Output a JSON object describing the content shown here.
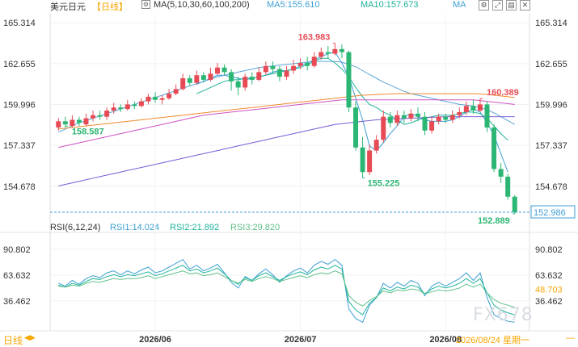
{
  "header": {
    "symbol": "美元日元",
    "period": "【日线】",
    "ma_title": "MA(5,10,30,60,100,200)",
    "ma5": "MA5:155.610",
    "ma10": "MA10:157.673",
    "ma_more": "MA"
  },
  "rsi_header": {
    "title": "RSI(6,12,24)",
    "rsi1": "RSI1:14.024",
    "rsi2": "RSI2:21.892",
    "rsi3": "RSI3:29.820"
  },
  "colors": {
    "up": "#e64b55",
    "down": "#2bb673",
    "ma5": "#3c9fd3",
    "ma10": "#1db39a",
    "ma30": "#5aa6d6",
    "ma60": "#f28a2e",
    "ma100": "#cc52c4",
    "ma200": "#7a5bd6",
    "rsi1": "#3c9fd3",
    "rsi2": "#1db39a",
    "rsi3": "#5fc08a",
    "last_price": "#3c9fd3",
    "axis_text": "#333333"
  },
  "icons": [
    "settings-icon",
    "expand-icon",
    "layout-icon",
    "close-icon"
  ],
  "footer": {
    "label": "日线",
    "arrows": "◀▶",
    "cursor_date": "2026/08/24 星期一",
    "nav": "—"
  },
  "watermark": "FX678",
  "chart_data": [
    {
      "type": "candlestick",
      "title": "美元日元【日线】",
      "ylim": [
        152.2,
        165.9
      ],
      "y_ticks": [
        "165.314",
        "162.655",
        "159.996",
        "157.337",
        "154.678"
      ],
      "x_ticks": [
        "2026/06",
        "2026/07",
        "2026/08"
      ],
      "annotations": {
        "high": "163.983",
        "high_right": "160.389",
        "low_mid": "155.225",
        "low_left": "158.587",
        "low_last": "152.889",
        "last_price": "152.986"
      },
      "candles": [
        [
          158.5,
          158.9,
          159.1,
          158.3
        ],
        [
          158.9,
          158.7,
          159.2,
          158.5
        ],
        [
          158.6,
          159.0,
          159.3,
          158.5
        ],
        [
          159.0,
          158.8,
          159.2,
          158.6
        ],
        [
          158.7,
          159.1,
          159.4,
          158.6
        ],
        [
          159.1,
          159.3,
          159.6,
          158.9
        ],
        [
          159.3,
          159.2,
          159.6,
          159.0
        ],
        [
          159.2,
          159.6,
          159.8,
          159.0
        ],
        [
          159.6,
          159.8,
          160.1,
          159.4
        ],
        [
          159.8,
          159.7,
          160.0,
          159.5
        ],
        [
          159.7,
          160.0,
          160.3,
          159.6
        ],
        [
          160.0,
          159.9,
          160.2,
          159.7
        ],
        [
          159.9,
          160.2,
          160.4,
          159.8
        ],
        [
          160.2,
          160.5,
          160.7,
          160.0
        ],
        [
          160.5,
          160.3,
          160.8,
          160.1
        ],
        [
          160.3,
          160.4,
          160.6,
          160.0
        ],
        [
          160.4,
          160.7,
          161.0,
          160.3
        ],
        [
          160.7,
          161.0,
          161.3,
          160.6
        ],
        [
          161.0,
          161.7,
          162.0,
          160.9
        ],
        [
          161.7,
          161.4,
          161.9,
          161.2
        ],
        [
          161.4,
          161.9,
          162.2,
          161.3
        ],
        [
          161.9,
          161.6,
          162.1,
          161.4
        ],
        [
          161.6,
          162.0,
          162.4,
          161.5
        ],
        [
          162.0,
          162.4,
          162.7,
          161.9
        ],
        [
          162.4,
          162.1,
          162.6,
          161.9
        ],
        [
          162.1,
          161.5,
          162.3,
          160.9
        ],
        [
          161.5,
          161.1,
          161.8,
          160.6
        ],
        [
          161.1,
          161.8,
          162.0,
          160.9
        ],
        [
          161.8,
          161.6,
          162.1,
          161.3
        ],
        [
          161.6,
          162.1,
          162.4,
          161.5
        ],
        [
          162.1,
          162.5,
          162.8,
          161.9
        ],
        [
          162.5,
          162.3,
          162.8,
          162.0
        ],
        [
          162.3,
          161.8,
          162.5,
          161.5
        ],
        [
          161.8,
          162.2,
          162.5,
          161.6
        ],
        [
          162.2,
          162.5,
          162.9,
          162.0
        ],
        [
          162.5,
          162.7,
          163.0,
          162.3
        ],
        [
          162.7,
          162.5,
          163.1,
          162.2
        ],
        [
          162.5,
          163.1,
          163.4,
          162.4
        ],
        [
          163.1,
          163.4,
          163.7,
          162.9
        ],
        [
          163.4,
          163.3,
          163.8,
          163.0
        ],
        [
          163.3,
          163.6,
          163.98,
          163.2
        ],
        [
          163.6,
          163.4,
          163.9,
          163.0
        ],
        [
          163.4,
          159.8,
          163.5,
          159.5
        ],
        [
          159.8,
          157.2,
          160.2,
          157.0
        ],
        [
          157.2,
          155.6,
          157.9,
          155.22
        ],
        [
          155.6,
          157.0,
          157.4,
          155.4
        ],
        [
          157.0,
          157.7,
          158.0,
          156.8
        ],
        [
          157.7,
          159.2,
          159.6,
          157.5
        ],
        [
          159.2,
          158.8,
          159.5,
          158.5
        ],
        [
          158.8,
          159.3,
          159.6,
          158.6
        ],
        [
          159.3,
          159.1,
          159.6,
          158.8
        ],
        [
          159.1,
          159.4,
          159.7,
          158.9
        ],
        [
          159.4,
          159.2,
          159.8,
          158.9
        ],
        [
          159.2,
          158.3,
          159.5,
          158.0
        ],
        [
          158.3,
          158.9,
          159.2,
          158.1
        ],
        [
          158.9,
          159.2,
          159.4,
          158.7
        ],
        [
          159.2,
          159.0,
          159.4,
          158.8
        ],
        [
          159.0,
          159.3,
          159.6,
          158.8
        ],
        [
          159.3,
          159.5,
          159.8,
          159.1
        ],
        [
          159.5,
          159.9,
          160.2,
          159.3
        ],
        [
          159.9,
          159.6,
          160.3,
          159.4
        ],
        [
          159.6,
          160.0,
          160.39,
          159.5
        ],
        [
          160.0,
          158.5,
          160.2,
          158.2
        ],
        [
          158.5,
          155.8,
          158.7,
          155.6
        ],
        [
          155.8,
          155.3,
          156.2,
          154.9
        ],
        [
          155.3,
          154.0,
          155.5,
          153.8
        ],
        [
          154.0,
          152.99,
          154.1,
          152.889
        ]
      ],
      "ma_series": [
        {
          "name": "MA5",
          "start": 20,
          "values": [
            161.3,
            161.5,
            161.7,
            161.9,
            161.9,
            161.8,
            161.7,
            161.6,
            161.7,
            161.8,
            161.9,
            162.1,
            162.2,
            162.2,
            162.3,
            162.5,
            162.7,
            162.9,
            163.1,
            163.3,
            163.4,
            162.7,
            161.8,
            160.4,
            159.0,
            157.3,
            157.0,
            157.5,
            158.1,
            158.6,
            159.2,
            159.4,
            159.2,
            159.0,
            158.9,
            158.9,
            158.9,
            159.0,
            159.2,
            159.5,
            159.7,
            159.5,
            158.8,
            158.0,
            156.8,
            155.61
          ]
        },
        {
          "name": "MA10",
          "start": 20,
          "values": [
            160.7,
            160.9,
            161.1,
            161.3,
            161.5,
            161.6,
            161.6,
            161.7,
            161.7,
            161.8,
            161.9,
            162.0,
            162.1,
            162.2,
            162.3,
            162.4,
            162.6,
            162.8,
            163.0,
            163.0,
            162.7,
            162.3,
            161.8,
            161.1,
            160.5,
            160.0,
            159.8,
            159.5,
            159.3,
            159.0,
            158.7,
            158.8,
            159.0,
            159.1,
            159.2,
            159.3,
            159.3,
            159.3,
            159.4,
            159.5,
            159.5,
            159.4,
            159.1,
            158.6,
            158.1,
            157.67
          ]
        },
        {
          "name": "MA30",
          "start": 0,
          "values": [
            158.2,
            158.4,
            158.6,
            158.8,
            158.95,
            159.1,
            159.25,
            159.4,
            159.55,
            159.7,
            159.85,
            160.0,
            160.15,
            160.3,
            160.45,
            160.6,
            160.75,
            160.9,
            161.05,
            161.2,
            161.35,
            161.5,
            161.65,
            161.8,
            161.9,
            162.0,
            162.1,
            162.2,
            162.3,
            162.4,
            162.45,
            162.5,
            162.55,
            162.6,
            162.65,
            162.7,
            162.75,
            162.8,
            162.8,
            162.8,
            162.8,
            162.75,
            162.6,
            162.45,
            162.2,
            161.95,
            161.7,
            161.45,
            161.25,
            161.05,
            160.85,
            160.7,
            160.6,
            160.5,
            160.4,
            160.3,
            160.2,
            160.1,
            160.0,
            159.95,
            159.9,
            159.8,
            159.65,
            159.45,
            159.2,
            158.95,
            158.7
          ]
        },
        {
          "name": "MA60",
          "start": 0,
          "values": [
            158.4,
            158.45,
            158.5,
            158.55,
            158.6,
            158.65,
            158.7,
            158.75,
            158.8,
            158.85,
            158.9,
            158.95,
            159.0,
            159.05,
            159.1,
            159.15,
            159.2,
            159.25,
            159.3,
            159.35,
            159.4,
            159.45,
            159.5,
            159.55,
            159.6,
            159.65,
            159.7,
            159.75,
            159.8,
            159.85,
            159.9,
            159.95,
            160.0,
            160.05,
            160.1,
            160.15,
            160.2,
            160.25,
            160.3,
            160.35,
            160.4,
            160.45,
            160.5,
            160.55,
            160.6,
            160.62,
            160.64,
            160.66,
            160.68,
            160.7,
            160.7,
            160.7,
            160.7,
            160.7,
            160.7,
            160.7,
            160.7,
            160.7,
            160.7,
            160.7,
            160.7,
            160.68,
            160.64,
            160.6,
            160.55,
            160.5,
            160.45
          ]
        },
        {
          "name": "MA100",
          "start": 0,
          "values": [
            157.2,
            157.3,
            157.4,
            157.5,
            157.6,
            157.7,
            157.8,
            157.9,
            158.0,
            158.1,
            158.2,
            158.3,
            158.4,
            158.5,
            158.6,
            158.7,
            158.8,
            158.9,
            159.0,
            159.1,
            159.2,
            159.3,
            159.35,
            159.4,
            159.45,
            159.5,
            159.55,
            159.6,
            159.65,
            159.7,
            159.75,
            159.8,
            159.85,
            159.9,
            159.95,
            160.0,
            160.05,
            160.1,
            160.15,
            160.2,
            160.25,
            160.3,
            160.3,
            160.3,
            160.3,
            160.3,
            160.3,
            160.3,
            160.3,
            160.3,
            160.3,
            160.3,
            160.3,
            160.3,
            160.3,
            160.3,
            160.3,
            160.3,
            160.3,
            160.3,
            160.3,
            160.25,
            160.2,
            160.15,
            160.1,
            160.05,
            160.0
          ]
        },
        {
          "name": "MA200",
          "start": 0,
          "values": [
            154.7,
            154.8,
            154.9,
            155.0,
            155.1,
            155.2,
            155.3,
            155.4,
            155.5,
            155.6,
            155.7,
            155.8,
            155.9,
            156.0,
            156.1,
            156.2,
            156.3,
            156.4,
            156.5,
            156.6,
            156.7,
            156.8,
            156.9,
            157.0,
            157.1,
            157.2,
            157.3,
            157.4,
            157.5,
            157.6,
            157.7,
            157.8,
            157.9,
            158.0,
            158.1,
            158.2,
            158.3,
            158.4,
            158.5,
            158.6,
            158.7,
            158.75,
            158.8,
            158.85,
            158.9,
            158.95,
            159.0,
            159.02,
            159.04,
            159.06,
            159.08,
            159.1,
            159.12,
            159.14,
            159.16,
            159.18,
            159.2,
            159.2,
            159.2,
            159.2,
            159.2,
            159.2,
            159.2,
            159.2,
            159.2,
            159.2,
            159.2
          ]
        }
      ]
    },
    {
      "type": "line",
      "title": "RSI(6,12,24)",
      "ylim": [
        5,
        100
      ],
      "y_ticks": [
        "90.802",
        "63.632",
        "36.462"
      ],
      "last_label": "48.703",
      "series": [
        {
          "name": "RSI1",
          "values": [
            55,
            52,
            58,
            54,
            60,
            63,
            61,
            66,
            68,
            64,
            68,
            65,
            69,
            72,
            66,
            68,
            72,
            76,
            80,
            70,
            74,
            68,
            71,
            75,
            66,
            56,
            50,
            62,
            58,
            65,
            70,
            64,
            56,
            63,
            68,
            71,
            66,
            74,
            78,
            75,
            80,
            74,
            28,
            18,
            14,
            32,
            40,
            55,
            50,
            56,
            52,
            58,
            55,
            42,
            52,
            56,
            52,
            56,
            60,
            66,
            58,
            66,
            40,
            22,
            18,
            15,
            14.02
          ]
        },
        {
          "name": "RSI2",
          "values": [
            53,
            51,
            55,
            53,
            57,
            60,
            59,
            62,
            64,
            62,
            64,
            63,
            65,
            67,
            63,
            65,
            68,
            71,
            74,
            68,
            70,
            66,
            68,
            71,
            65,
            58,
            54,
            61,
            58,
            63,
            66,
            62,
            58,
            62,
            65,
            67,
            64,
            69,
            72,
            70,
            74,
            70,
            36,
            27,
            22,
            34,
            40,
            50,
            47,
            51,
            49,
            53,
            51,
            44,
            49,
            52,
            50,
            52,
            55,
            60,
            55,
            60,
            45,
            32,
            27,
            24,
            21.89
          ]
        },
        {
          "name": "RSI3",
          "values": [
            52,
            51,
            53,
            52,
            55,
            57,
            56,
            58,
            60,
            59,
            60,
            60,
            61,
            63,
            60,
            62,
            64,
            66,
            68,
            65,
            66,
            63,
            64,
            66,
            62,
            58,
            55,
            59,
            57,
            60,
            62,
            60,
            57,
            59,
            61,
            63,
            61,
            64,
            66,
            65,
            68,
            65,
            42,
            35,
            31,
            37,
            41,
            47,
            45,
            48,
            47,
            49,
            48,
            44,
            46,
            48,
            47,
            48,
            50,
            54,
            51,
            54,
            45,
            38,
            34,
            32,
            29.82
          ]
        }
      ]
    }
  ]
}
